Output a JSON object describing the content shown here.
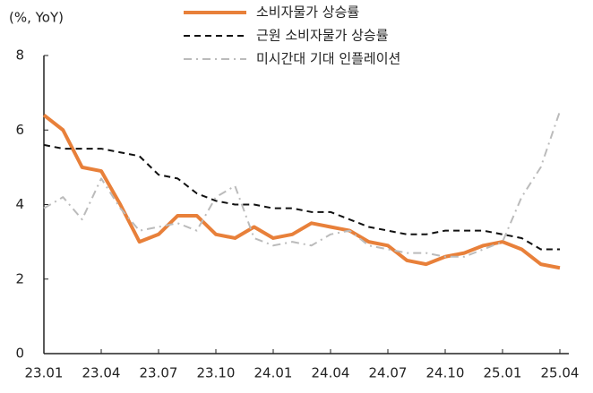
{
  "chart_data": {
    "type": "line",
    "y_label": "(%, YoY)",
    "categories": [
      "23.01",
      null,
      null,
      "23.04",
      null,
      null,
      "23.07",
      null,
      null,
      "23.10",
      null,
      null,
      "24.01",
      null,
      null,
      "24.04",
      null,
      null,
      "24.07",
      null,
      null,
      "24.10",
      null,
      null,
      "25.01",
      null,
      null,
      "25.04"
    ],
    "series": [
      {
        "name": "소비자물가 상승률",
        "color": "#e8803a",
        "style": "solid",
        "width": 4,
        "values": [
          6.4,
          6.0,
          5.0,
          4.9,
          4.0,
          3.0,
          3.2,
          3.7,
          3.7,
          3.2,
          3.1,
          3.4,
          3.1,
          3.2,
          3.5,
          3.4,
          3.3,
          3.0,
          2.9,
          2.5,
          2.4,
          2.6,
          2.7,
          2.9,
          3.0,
          2.8,
          2.4,
          2.3
        ]
      },
      {
        "name": "근원 소비자물가 상승률",
        "color": "#111111",
        "style": "dashed",
        "width": 2,
        "values": [
          5.6,
          5.5,
          5.5,
          5.5,
          5.4,
          5.3,
          4.8,
          4.7,
          4.3,
          4.1,
          4.0,
          4.0,
          3.9,
          3.9,
          3.8,
          3.8,
          3.6,
          3.4,
          3.3,
          3.2,
          3.2,
          3.3,
          3.3,
          3.3,
          3.2,
          3.1,
          2.8,
          2.8
        ]
      },
      {
        "name": "미시간대 기대 인플레이션",
        "color": "#bbbbbb",
        "style": "dashdot",
        "width": 2,
        "values": [
          3.9,
          4.2,
          3.6,
          4.7,
          3.9,
          3.3,
          3.4,
          3.5,
          3.3,
          4.2,
          4.5,
          3.1,
          2.9,
          3.0,
          2.9,
          3.2,
          3.3,
          2.9,
          2.8,
          2.7,
          2.7,
          2.6,
          2.6,
          2.8,
          3.0,
          4.2,
          5.0,
          6.5
        ]
      }
    ],
    "ylim": [
      0,
      8
    ],
    "yticks": [
      0,
      2,
      4,
      6,
      8
    ],
    "grid": false,
    "legend": "top"
  }
}
